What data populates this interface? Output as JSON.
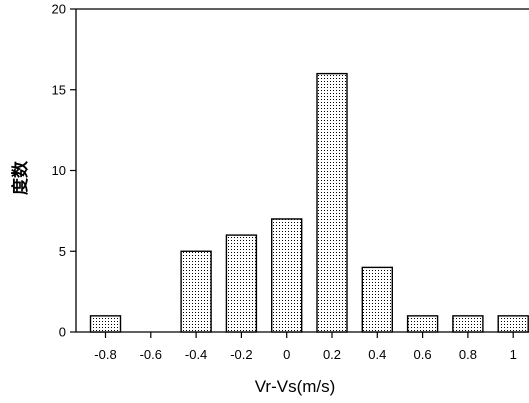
{
  "chart_data": {
    "type": "bar",
    "title": "",
    "xlabel": "Vr-Vs(m/s)",
    "ylabel": "度数",
    "categories": [
      "-0.8",
      "-0.6",
      "-0.4",
      "-0.2",
      "0",
      "0.2",
      "0.4",
      "0.6",
      "0.8",
      "1"
    ],
    "values": [
      1,
      0,
      5,
      6,
      7,
      16,
      4,
      1,
      1,
      1
    ],
    "ylim": [
      0,
      20
    ],
    "yticks": [
      0,
      5,
      10,
      15,
      20
    ],
    "grid": false,
    "legend": "none",
    "bar_fill": "dotted"
  }
}
